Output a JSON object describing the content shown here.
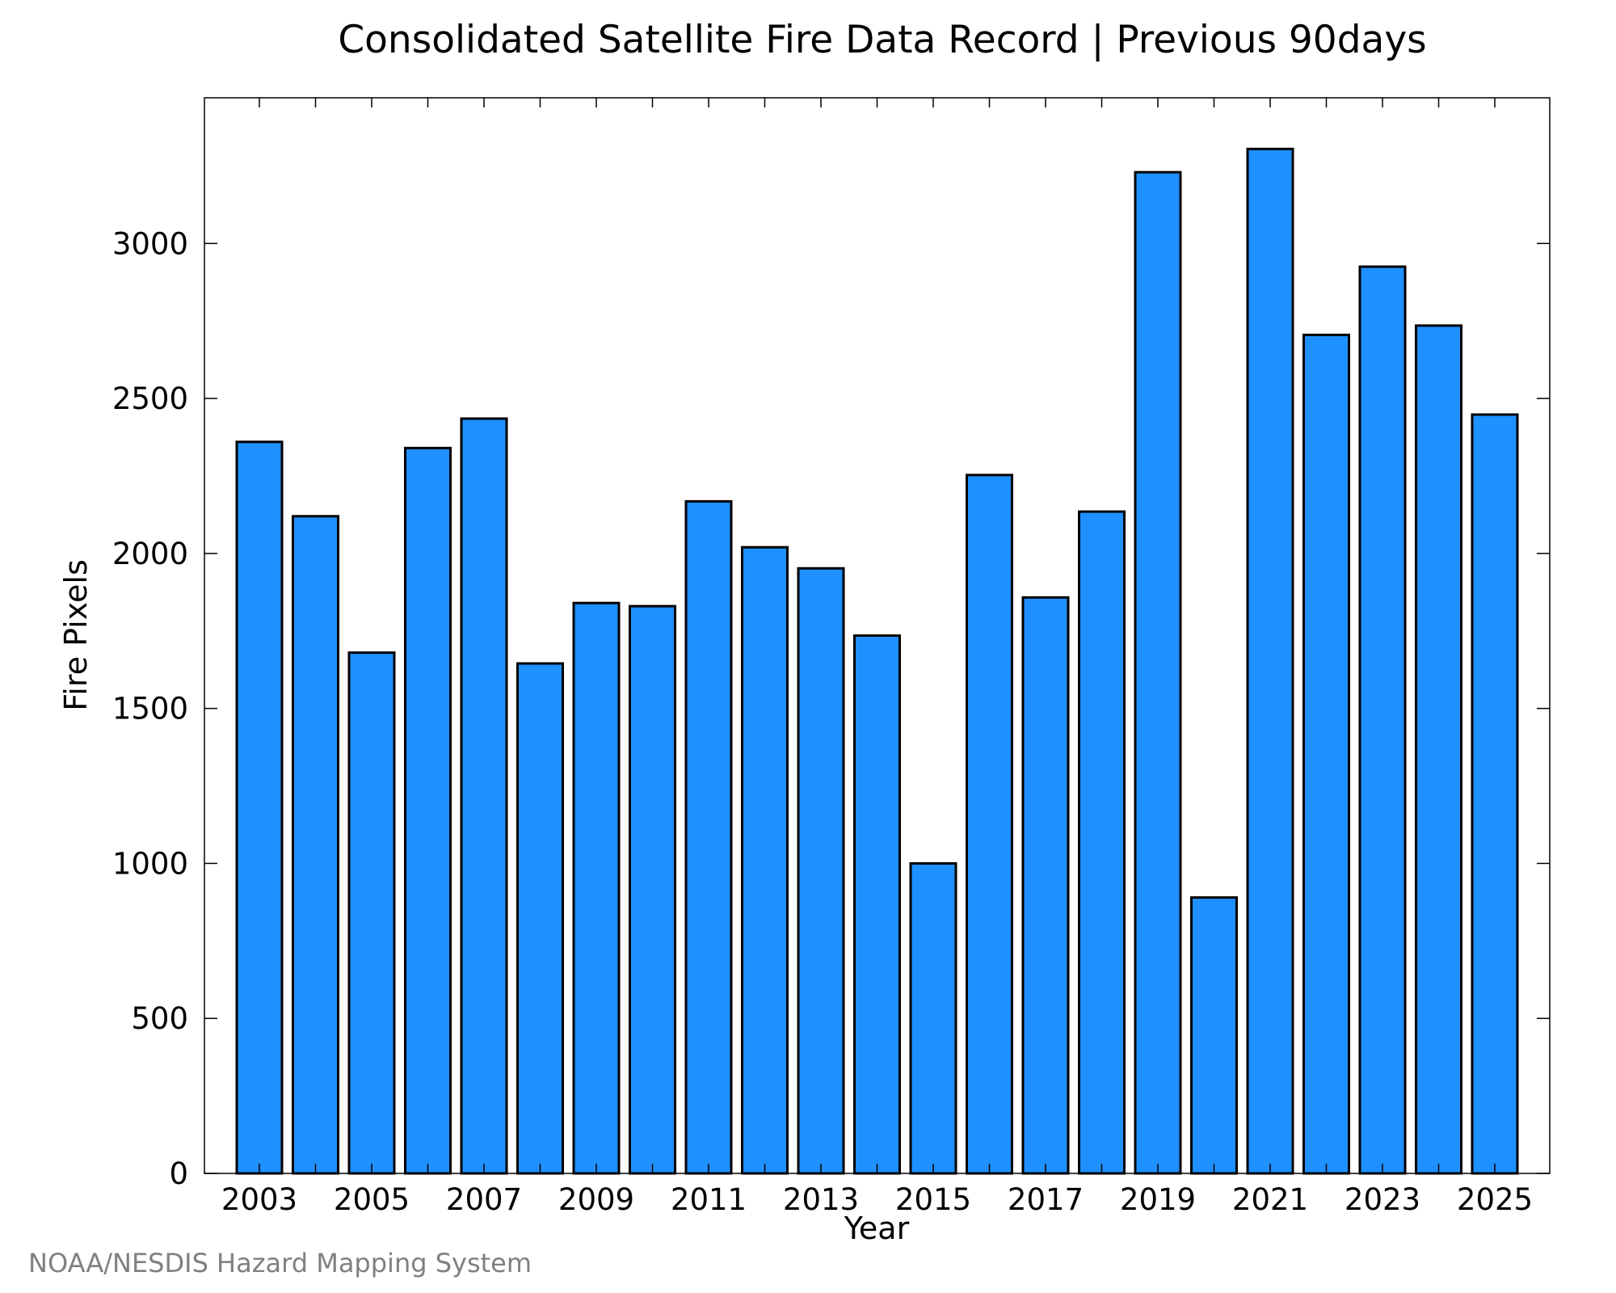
{
  "chart_data": {
    "type": "bar",
    "title": "Consolidated Satellite Fire Data Record | Previous 90days",
    "xlabel": "Year",
    "ylabel": "Fire Pixels",
    "categories": [
      "2003",
      "2004",
      "2005",
      "2006",
      "2007",
      "2008",
      "2009",
      "2010",
      "2011",
      "2012",
      "2013",
      "2014",
      "2015",
      "2016",
      "2017",
      "2018",
      "2019",
      "2020",
      "2021",
      "2022",
      "2023",
      "2024",
      "2025"
    ],
    "values": [
      2360,
      2120,
      1680,
      2340,
      2435,
      1645,
      1840,
      1830,
      2168,
      2020,
      1952,
      1735,
      1000,
      2253,
      1858,
      2135,
      3230,
      890,
      3305,
      2705,
      2925,
      2735,
      2448
    ],
    "x_tick_labels": [
      "2003",
      "2005",
      "2007",
      "2009",
      "2011",
      "2013",
      "2015",
      "2017",
      "2019",
      "2021",
      "2023",
      "2025"
    ],
    "y_ticks": [
      0,
      500,
      1000,
      1500,
      2000,
      2500,
      3000
    ],
    "ylim": [
      0,
      3470
    ],
    "grid": false,
    "bar_color": "#1e90ff",
    "edge_color": "#000000"
  },
  "footer": {
    "credit": "NOAA/NESDIS Hazard Mapping System"
  }
}
